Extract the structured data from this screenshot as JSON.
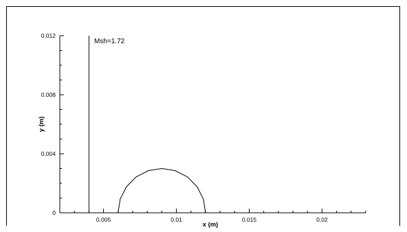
{
  "chart_data": {
    "type": "line",
    "title": "",
    "xlabel": "x (m)",
    "ylabel": "y (m)",
    "xlim": [
      0.002,
      0.023
    ],
    "ylim": [
      0,
      0.012
    ],
    "x_ticks": [
      0.005,
      0.01,
      0.015,
      0.02
    ],
    "x_tick_labels": [
      "0.005",
      "0.01",
      "0.015",
      "0.02"
    ],
    "y_ticks": [
      0,
      0.004,
      0.008,
      0.012
    ],
    "y_tick_labels": [
      "0",
      "0.004",
      "0.008",
      "0.012"
    ],
    "grid": false,
    "annotation": "Msh=1.72",
    "series": [
      {
        "values": [
          [
            0.004,
            0
          ],
          [
            0.004,
            0.012
          ]
        ]
      },
      {
        "values": [
          [
            0.006,
            0
          ],
          [
            0.006146,
            0.0009271
          ],
          [
            0.006573,
            0.0017634
          ],
          [
            0.007237,
            0.0024271
          ],
          [
            0.008073,
            0.0028532
          ],
          [
            0.009,
            0.003
          ],
          [
            0.009927,
            0.0028532
          ],
          [
            0.010763,
            0.0024271
          ],
          [
            0.011427,
            0.0017634
          ],
          [
            0.011854,
            0.0009271
          ],
          [
            0.012,
            0
          ]
        ]
      }
    ]
  }
}
